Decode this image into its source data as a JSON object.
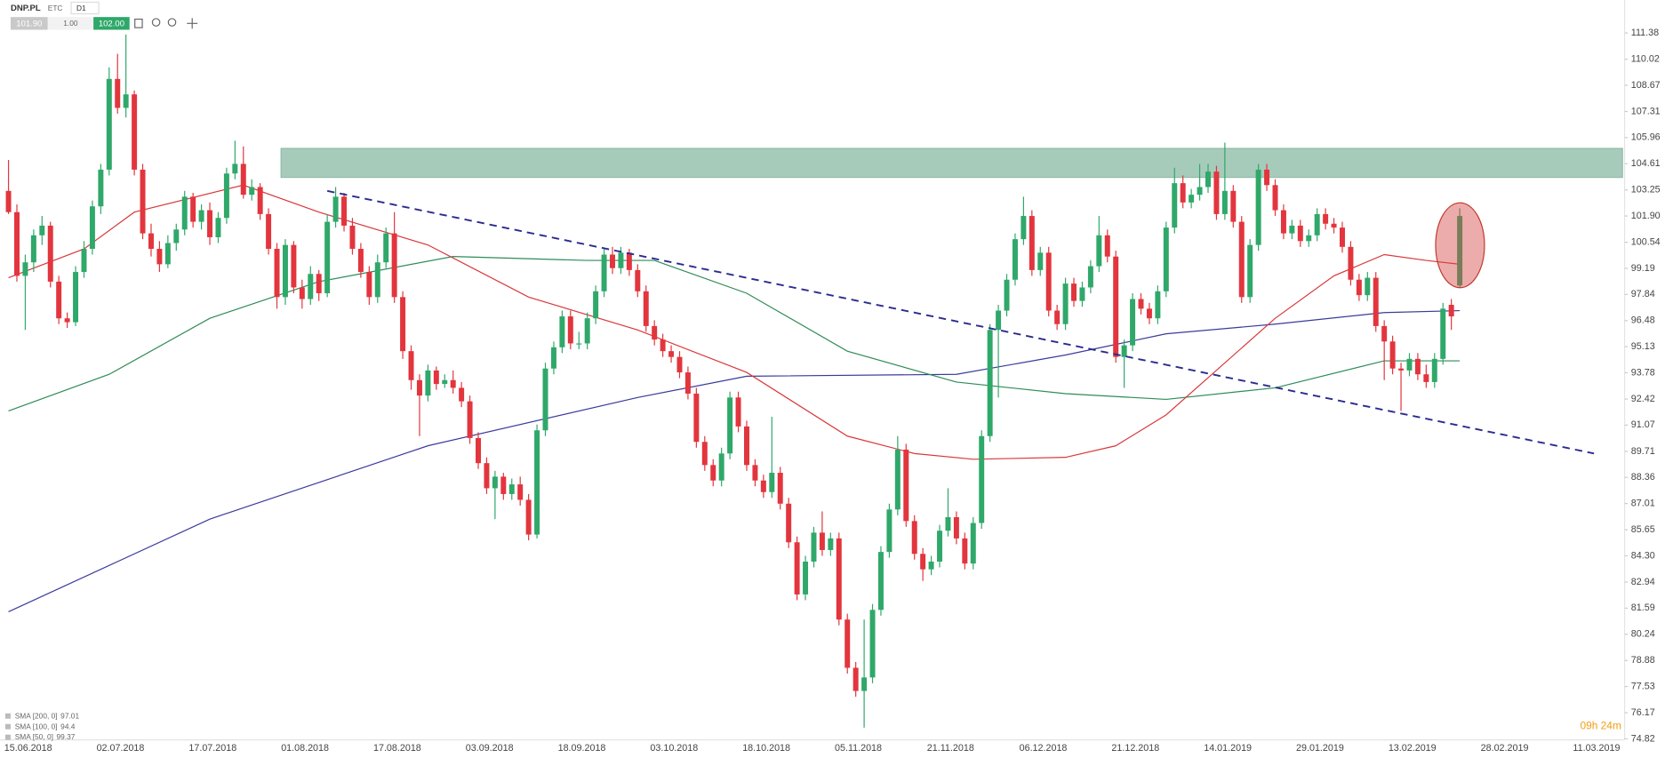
{
  "chart_data": {
    "type": "candlestick",
    "symbol": "DNP.PL",
    "market": "ETC",
    "timeframe": "D1",
    "sell": "101.90",
    "spread": "1.00",
    "buy": "102.00",
    "countdown": "09h 24m",
    "up_color": "#2fa86a",
    "down_color": "#e2353d",
    "ylim": [
      74.82,
      111.38
    ],
    "yticks": [
      111.38,
      110.02,
      108.67,
      107.31,
      105.96,
      104.61,
      103.25,
      {
        "value": 101.9,
        "label": "101.90"
      },
      100.54,
      99.19,
      97.84,
      96.48,
      95.13,
      93.78,
      92.42,
      91.07,
      89.71,
      88.36,
      87.01,
      85.65,
      {
        "value": 84.3,
        "label": "84.30"
      },
      82.94,
      81.59,
      80.24,
      78.88,
      77.53,
      76.17,
      74.82
    ],
    "categories": [
      "15.06.2018",
      null,
      null,
      null,
      null,
      null,
      null,
      null,
      null,
      null,
      null,
      "02.07.2018",
      null,
      null,
      null,
      null,
      null,
      null,
      null,
      null,
      null,
      null,
      "17.07.2018",
      null,
      null,
      null,
      null,
      null,
      null,
      null,
      null,
      null,
      null,
      "01.08.2018",
      null,
      null,
      null,
      null,
      null,
      null,
      null,
      null,
      null,
      null,
      "17.08.2018",
      null,
      null,
      null,
      null,
      null,
      null,
      null,
      null,
      null,
      null,
      "03.09.2018",
      null,
      null,
      null,
      null,
      null,
      null,
      null,
      null,
      null,
      null,
      "18.09.2018",
      null,
      null,
      null,
      null,
      null,
      null,
      null,
      null,
      null,
      null,
      "03.10.2018",
      null,
      null,
      null,
      null,
      null,
      null,
      null,
      null,
      null,
      null,
      "18.10.2018",
      null,
      null,
      null,
      null,
      null,
      null,
      null,
      null,
      null,
      null,
      "05.11.2018",
      null,
      null,
      null,
      null,
      null,
      null,
      null,
      null,
      null,
      null,
      "21.11.2018",
      null,
      null,
      null,
      null,
      null,
      null,
      null,
      null,
      null,
      null,
      "06.12.2018",
      null,
      null,
      null,
      null,
      null,
      null,
      null,
      null,
      null,
      null,
      "21.12.2018",
      null,
      null,
      null,
      null,
      null,
      null,
      null,
      null,
      null,
      null,
      "14.01.2019",
      null,
      null,
      null,
      null,
      null,
      null,
      null,
      null,
      null,
      null,
      "29.01.2019",
      null,
      null,
      null,
      null,
      null,
      null,
      null,
      null,
      null,
      null,
      "13.02.2019",
      null,
      null,
      null,
      null,
      null,
      null,
      null,
      null,
      null,
      null,
      "28.02.2019",
      null,
      null,
      null,
      null,
      null,
      null,
      null,
      null,
      null,
      null,
      "11.03.2019"
    ],
    "candles": [
      [
        103.2,
        104.8,
        102.0,
        102.1
      ],
      [
        102.1,
        102.5,
        98.5,
        98.8
      ],
      [
        98.8,
        99.9,
        96.0,
        99.5
      ],
      [
        99.5,
        101.2,
        99.0,
        100.9
      ],
      [
        100.9,
        101.9,
        100.4,
        101.4
      ],
      [
        101.4,
        101.6,
        98.2,
        98.5
      ],
      [
        98.5,
        98.8,
        96.3,
        96.6
      ],
      [
        96.6,
        96.9,
        96.1,
        96.4
      ],
      [
        96.4,
        99.3,
        96.2,
        99.0
      ],
      [
        99.0,
        100.6,
        98.7,
        100.2
      ],
      [
        100.2,
        102.7,
        99.9,
        102.4
      ],
      [
        102.4,
        104.6,
        102.0,
        104.3
      ],
      [
        104.3,
        109.6,
        104.0,
        109.0
      ],
      [
        109.0,
        110.3,
        107.2,
        107.5
      ],
      [
        107.5,
        111.3,
        107.0,
        108.2
      ],
      [
        108.2,
        108.4,
        104.0,
        104.3
      ],
      [
        104.3,
        104.6,
        100.7,
        101.0
      ],
      [
        101.0,
        101.5,
        99.8,
        100.2
      ],
      [
        100.2,
        100.6,
        99.0,
        99.4
      ],
      [
        99.4,
        100.9,
        99.2,
        100.5
      ],
      [
        100.5,
        101.5,
        100.1,
        101.2
      ],
      [
        101.2,
        103.2,
        100.9,
        102.9
      ],
      [
        102.9,
        103.1,
        101.3,
        101.6
      ],
      [
        101.6,
        102.5,
        101.2,
        102.2
      ],
      [
        102.2,
        102.6,
        100.4,
        100.8
      ],
      [
        100.8,
        102.1,
        100.5,
        101.8
      ],
      [
        101.8,
        104.4,
        101.5,
        104.1
      ],
      [
        104.1,
        105.8,
        103.8,
        104.6
      ],
      [
        104.6,
        105.5,
        102.8,
        103.0
      ],
      [
        103.0,
        103.8,
        102.7,
        103.4
      ],
      [
        103.4,
        103.6,
        101.7,
        102.0
      ],
      [
        102.0,
        102.3,
        99.9,
        100.2
      ],
      [
        100.2,
        100.5,
        97.1,
        97.7
      ],
      [
        97.7,
        100.7,
        97.3,
        100.4
      ],
      [
        100.4,
        100.6,
        97.9,
        98.2
      ],
      [
        98.2,
        98.6,
        97.1,
        97.6
      ],
      [
        97.6,
        99.3,
        97.3,
        98.9
      ],
      [
        98.9,
        99.1,
        97.5,
        97.9
      ],
      [
        97.9,
        102.0,
        97.7,
        101.6
      ],
      [
        101.6,
        103.4,
        101.3,
        102.9
      ],
      [
        102.9,
        103.1,
        101.1,
        101.4
      ],
      [
        101.4,
        101.8,
        99.9,
        100.2
      ],
      [
        100.2,
        100.5,
        98.7,
        99.0
      ],
      [
        99.0,
        99.3,
        97.3,
        97.7
      ],
      [
        97.7,
        99.9,
        97.4,
        99.5
      ],
      [
        99.5,
        101.3,
        99.2,
        101.0
      ],
      [
        101.0,
        102.1,
        97.4,
        97.7
      ],
      [
        97.7,
        98.0,
        94.5,
        94.9
      ],
      [
        94.9,
        95.2,
        92.9,
        93.4
      ],
      [
        93.4,
        93.7,
        90.5,
        92.6
      ],
      [
        92.6,
        94.2,
        92.3,
        93.9
      ],
      [
        93.9,
        94.1,
        92.9,
        93.2
      ],
      [
        93.2,
        93.7,
        93.0,
        93.4
      ],
      [
        93.4,
        93.9,
        92.7,
        93.0
      ],
      [
        93.0,
        93.3,
        92.0,
        92.3
      ],
      [
        92.3,
        92.6,
        90.1,
        90.4
      ],
      [
        90.4,
        90.7,
        88.8,
        89.1
      ],
      [
        89.1,
        89.4,
        87.5,
        87.8
      ],
      [
        87.8,
        88.7,
        86.2,
        88.4
      ],
      [
        88.4,
        88.6,
        87.2,
        87.5
      ],
      [
        87.5,
        88.3,
        87.2,
        88.0
      ],
      [
        88.0,
        88.4,
        86.9,
        87.2
      ],
      [
        87.2,
        87.5,
        85.1,
        85.4
      ],
      [
        85.4,
        91.1,
        85.2,
        90.8
      ],
      [
        90.8,
        94.3,
        90.5,
        94.0
      ],
      [
        94.0,
        95.4,
        93.7,
        95.1
      ],
      [
        95.1,
        97.0,
        94.8,
        96.7
      ],
      [
        96.7,
        97.0,
        95.0,
        95.3
      ],
      [
        95.3,
        95.9,
        95.0,
        95.3
      ],
      [
        95.3,
        96.9,
        95.0,
        96.6
      ],
      [
        96.6,
        98.3,
        96.3,
        98.0
      ],
      [
        98.0,
        100.2,
        97.7,
        99.9
      ],
      [
        99.9,
        100.3,
        98.9,
        99.2
      ],
      [
        99.2,
        100.3,
        98.9,
        100.0
      ],
      [
        100.0,
        100.2,
        98.8,
        99.1
      ],
      [
        99.1,
        99.4,
        97.7,
        98.0
      ],
      [
        98.0,
        98.3,
        95.9,
        96.2
      ],
      [
        96.2,
        96.5,
        95.2,
        95.5
      ],
      [
        95.5,
        95.8,
        94.6,
        94.9
      ],
      [
        94.9,
        95.2,
        94.3,
        94.6
      ],
      [
        94.6,
        94.9,
        93.5,
        93.8
      ],
      [
        93.8,
        94.1,
        92.4,
        92.7
      ],
      [
        92.7,
        93.0,
        89.9,
        90.2
      ],
      [
        90.2,
        90.5,
        88.7,
        89.0
      ],
      [
        89.0,
        89.3,
        87.9,
        88.2
      ],
      [
        88.2,
        89.9,
        87.9,
        89.6
      ],
      [
        89.6,
        92.8,
        89.3,
        92.5
      ],
      [
        92.5,
        92.8,
        90.7,
        91.0
      ],
      [
        91.0,
        91.3,
        88.7,
        89.0
      ],
      [
        89.0,
        89.3,
        87.9,
        88.2
      ],
      [
        88.2,
        88.5,
        87.3,
        87.6
      ],
      [
        87.6,
        91.5,
        87.3,
        88.6
      ],
      [
        88.6,
        88.9,
        86.7,
        87.0
      ],
      [
        87.0,
        87.3,
        84.7,
        85.0
      ],
      [
        85.0,
        85.3,
        82.0,
        82.3
      ],
      [
        82.3,
        84.3,
        82.0,
        84.0
      ],
      [
        84.0,
        85.8,
        83.7,
        85.5
      ],
      [
        85.5,
        86.6,
        84.3,
        84.6
      ],
      [
        84.6,
        85.5,
        84.3,
        85.2
      ],
      [
        85.2,
        85.5,
        80.7,
        81.0
      ],
      [
        81.0,
        81.3,
        78.2,
        78.5
      ],
      [
        78.5,
        78.8,
        77.0,
        77.3
      ],
      [
        77.3,
        81.0,
        75.4,
        78.0
      ],
      [
        78.0,
        81.8,
        77.7,
        81.5
      ],
      [
        81.5,
        84.8,
        81.2,
        84.5
      ],
      [
        84.5,
        87.0,
        84.2,
        86.7
      ],
      [
        86.7,
        90.5,
        86.4,
        89.8
      ],
      [
        89.8,
        90.1,
        85.8,
        86.1
      ],
      [
        86.1,
        86.4,
        84.1,
        84.4
      ],
      [
        84.4,
        84.7,
        83.0,
        83.6
      ],
      [
        83.6,
        84.3,
        83.3,
        84.0
      ],
      [
        84.0,
        85.9,
        83.7,
        85.6
      ],
      [
        85.6,
        87.8,
        85.3,
        86.3
      ],
      [
        86.3,
        86.6,
        84.9,
        85.2
      ],
      [
        85.2,
        85.5,
        83.6,
        83.9
      ],
      [
        83.9,
        86.3,
        83.6,
        86.0
      ],
      [
        86.0,
        90.8,
        85.7,
        90.5
      ],
      [
        90.5,
        96.3,
        90.2,
        96.0
      ],
      [
        96.0,
        97.3,
        92.5,
        97.0
      ],
      [
        97.0,
        98.9,
        96.7,
        98.6
      ],
      [
        98.6,
        101.0,
        98.3,
        100.7
      ],
      [
        100.7,
        102.9,
        100.4,
        101.9
      ],
      [
        101.9,
        102.2,
        98.8,
        99.1
      ],
      [
        99.1,
        100.3,
        98.8,
        100.0
      ],
      [
        100.0,
        100.3,
        96.7,
        97.0
      ],
      [
        97.0,
        97.3,
        96.0,
        96.3
      ],
      [
        96.3,
        98.7,
        96.0,
        98.4
      ],
      [
        98.4,
        98.7,
        97.2,
        97.5
      ],
      [
        97.5,
        98.5,
        97.2,
        98.2
      ],
      [
        98.2,
        99.6,
        97.9,
        99.3
      ],
      [
        99.3,
        101.9,
        99.0,
        100.9
      ],
      [
        100.9,
        101.2,
        99.5,
        99.8
      ],
      [
        99.8,
        100.1,
        94.3,
        94.6
      ],
      [
        94.6,
        95.5,
        93.0,
        95.2
      ],
      [
        95.2,
        97.9,
        94.9,
        97.6
      ],
      [
        97.6,
        97.9,
        96.8,
        97.1
      ],
      [
        97.1,
        97.4,
        96.3,
        96.6
      ],
      [
        96.6,
        98.3,
        96.3,
        98.0
      ],
      [
        98.0,
        101.6,
        97.7,
        101.3
      ],
      [
        101.3,
        104.4,
        101.0,
        103.6
      ],
      [
        103.6,
        104.0,
        102.3,
        102.6
      ],
      [
        102.6,
        103.3,
        102.3,
        103.0
      ],
      [
        103.0,
        104.6,
        102.7,
        103.4
      ],
      [
        103.4,
        104.6,
        103.1,
        104.2
      ],
      [
        104.2,
        104.5,
        101.7,
        102.0
      ],
      [
        102.0,
        105.7,
        101.7,
        103.2
      ],
      [
        103.2,
        103.5,
        101.3,
        101.6
      ],
      [
        101.6,
        101.9,
        97.4,
        97.7
      ],
      [
        97.7,
        100.7,
        97.4,
        100.4
      ],
      [
        100.4,
        104.6,
        100.1,
        104.3
      ],
      [
        104.3,
        104.6,
        103.2,
        103.5
      ],
      [
        103.5,
        103.8,
        101.9,
        102.2
      ],
      [
        102.2,
        102.5,
        100.7,
        101.0
      ],
      [
        101.0,
        101.7,
        100.7,
        101.4
      ],
      [
        101.4,
        101.7,
        100.3,
        100.6
      ],
      [
        100.6,
        101.2,
        100.3,
        100.9
      ],
      [
        100.9,
        102.3,
        100.6,
        102.0
      ],
      [
        102.0,
        102.3,
        101.2,
        101.5
      ],
      [
        101.5,
        101.8,
        101.0,
        101.3
      ],
      [
        101.3,
        101.6,
        100.0,
        100.3
      ],
      [
        100.3,
        100.6,
        98.3,
        98.6
      ],
      [
        98.6,
        98.9,
        97.5,
        97.8
      ],
      [
        97.8,
        99.0,
        97.5,
        98.7
      ],
      [
        98.7,
        99.0,
        95.9,
        96.2
      ],
      [
        96.2,
        96.5,
        93.4,
        95.4
      ],
      [
        95.4,
        95.7,
        93.7,
        94.0
      ],
      [
        94.0,
        94.3,
        91.8,
        93.9
      ],
      [
        93.9,
        94.8,
        93.6,
        94.5
      ],
      [
        94.5,
        94.8,
        93.4,
        93.7
      ],
      [
        93.7,
        94.2,
        93.0,
        93.3
      ],
      [
        93.3,
        94.8,
        93.0,
        94.5
      ],
      [
        94.5,
        97.4,
        94.2,
        97.1
      ],
      [
        97.3,
        97.6,
        96.0,
        96.7
      ],
      [
        98.3,
        102.3,
        98.2,
        101.9
      ],
      null,
      null,
      null,
      null,
      null,
      null,
      null,
      null,
      null,
      null,
      null,
      null,
      null,
      null
    ],
    "series": [
      {
        "name": "SMA [200, 0]",
        "legend_value": 97.01,
        "color": "#3a3a9c",
        "x": [
          0,
          24,
          50,
          75,
          88,
          113,
          126,
          138,
          151,
          164,
          173
        ],
        "values": [
          81.4,
          86.2,
          90.0,
          92.5,
          93.6,
          93.7,
          94.7,
          95.8,
          96.3,
          96.9,
          97.0
        ]
      },
      {
        "name": "SMA [100, 0]",
        "legend_value": 94.4,
        "color": "#2e8b57",
        "x": [
          0,
          12,
          24,
          37,
          53,
          69,
          77,
          88,
          100,
          113,
          126,
          138,
          151,
          164,
          173
        ],
        "values": [
          91.8,
          93.7,
          96.6,
          98.5,
          99.8,
          99.6,
          99.6,
          97.9,
          94.9,
          93.3,
          92.7,
          92.4,
          93.0,
          94.4,
          94.4
        ]
      },
      {
        "name": "SMA [50, 0]",
        "legend_value": 99.37,
        "color": "#d9383a",
        "x": [
          0,
          9,
          15,
          28,
          37,
          50,
          62,
          75,
          88,
          100,
          108,
          115,
          126,
          132,
          138,
          151,
          158,
          164,
          169,
          173
        ],
        "values": [
          98.7,
          100.2,
          102.1,
          103.5,
          102.1,
          100.4,
          97.7,
          96.0,
          93.8,
          90.5,
          89.6,
          89.3,
          89.4,
          90.0,
          91.6,
          96.6,
          98.8,
          99.9,
          99.6,
          99.4
        ]
      }
    ],
    "zone": {
      "range": [
        103.9,
        105.4
      ],
      "x_start": 33,
      "color": "#a7cbbb"
    },
    "trendline": {
      "x": [
        38,
        189
      ],
      "values": [
        103.2,
        89.6
      ],
      "color": "#2b2b8f"
    }
  }
}
